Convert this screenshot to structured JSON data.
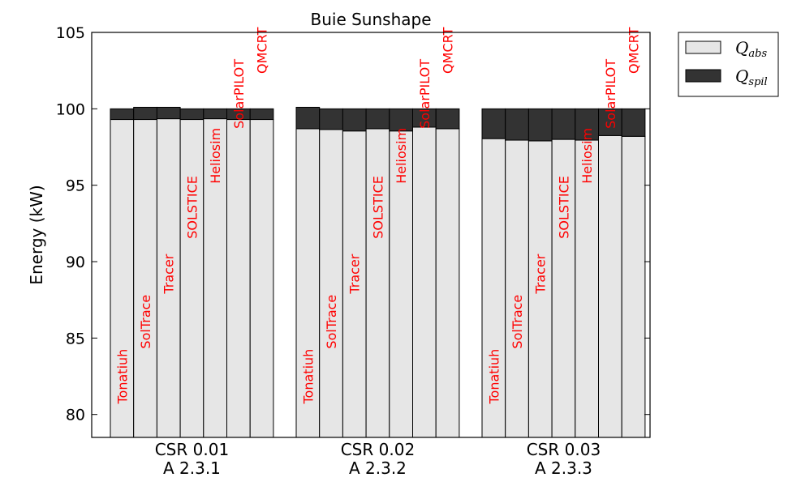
{
  "chart_data": {
    "type": "bar",
    "title": "Buie Sunshape",
    "ylabel": "Energy (kW)",
    "ylim": [
      78.5,
      105
    ],
    "yticks": [
      80,
      85,
      90,
      95,
      100,
      105
    ],
    "stacked": true,
    "group_labels": [
      [
        "CSR 0.01",
        "A 2.3.1"
      ],
      [
        "CSR 0.02",
        "A 2.3.2"
      ],
      [
        "CSR 0.03",
        "A 2.3.3"
      ]
    ],
    "software": [
      "Tonatiuh",
      "SolTrace",
      "Tracer",
      "SOLSTICE",
      "Heliosim",
      "SolarPILOT",
      "QMCRT"
    ],
    "series": [
      {
        "key": "abs",
        "color": "#e6e6e6",
        "values": [
          [
            99.3,
            99.3,
            99.35,
            99.3,
            99.35,
            99.3,
            99.3
          ],
          [
            98.7,
            98.65,
            98.55,
            98.7,
            98.55,
            98.8,
            98.7
          ],
          [
            98.05,
            97.95,
            97.9,
            98.0,
            97.95,
            98.25,
            98.2
          ]
        ]
      },
      {
        "key": "spil",
        "color": "#333333",
        "values": [
          [
            0.7,
            0.8,
            0.75,
            0.7,
            0.65,
            0.7,
            0.7
          ],
          [
            1.4,
            1.35,
            1.45,
            1.3,
            1.45,
            1.2,
            1.3
          ],
          [
            1.95,
            2.05,
            2.1,
            2.0,
            2.05,
            1.75,
            1.8
          ]
        ]
      }
    ],
    "legend": {
      "position": "outside-top-right",
      "entries": [
        {
          "main": "Q",
          "sub": "abs"
        },
        {
          "main": "Q",
          "sub": "spil"
        }
      ]
    },
    "grid": false
  }
}
